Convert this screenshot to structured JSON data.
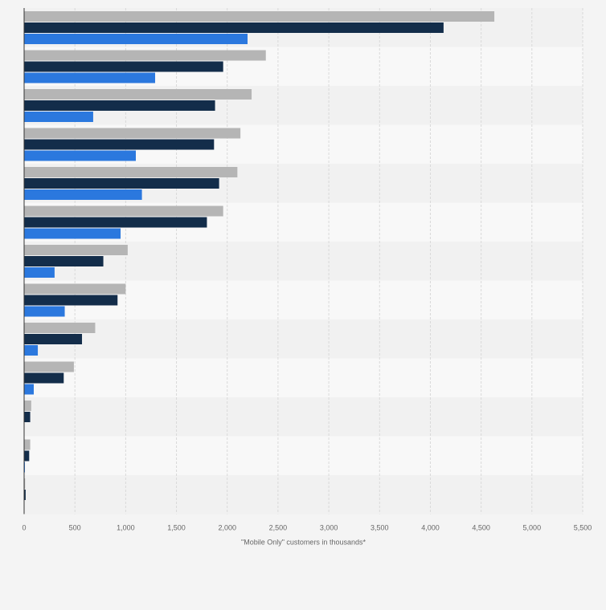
{
  "chart_data": {
    "type": "bar",
    "orientation": "horizontal",
    "title": "",
    "xlabel": "\"Mobile Only\" customers in thousands*",
    "ylabel": "",
    "xlim": [
      0,
      5500
    ],
    "xticks": [
      0,
      500,
      1000,
      1500,
      2000,
      2500,
      3000,
      3500,
      4000,
      4500,
      5000,
      5500
    ],
    "xtick_labels": [
      "0",
      "500",
      "1,000",
      "1,500",
      "2,000",
      "2,500",
      "3,000",
      "3,500",
      "4,000",
      "4,500",
      "5,000",
      "5,500"
    ],
    "grid": true,
    "categories": [
      "",
      "",
      "",
      "",
      "",
      "",
      "",
      "",
      "",
      "",
      "",
      "",
      ""
    ],
    "series": [
      {
        "name": "",
        "color": "#b5b5b5",
        "values": [
          4630,
          2380,
          2240,
          2130,
          2100,
          1960,
          1020,
          1000,
          700,
          490,
          70,
          60,
          10
        ]
      },
      {
        "name": "",
        "color": "#132d4a",
        "values": [
          4130,
          1960,
          1880,
          1870,
          1920,
          1800,
          780,
          920,
          570,
          390,
          60,
          50,
          15
        ]
      },
      {
        "name": "",
        "color": "#2b78de",
        "values": [
          2200,
          1290,
          680,
          1100,
          1160,
          950,
          300,
          400,
          135,
          95,
          0,
          5,
          0
        ]
      }
    ]
  }
}
